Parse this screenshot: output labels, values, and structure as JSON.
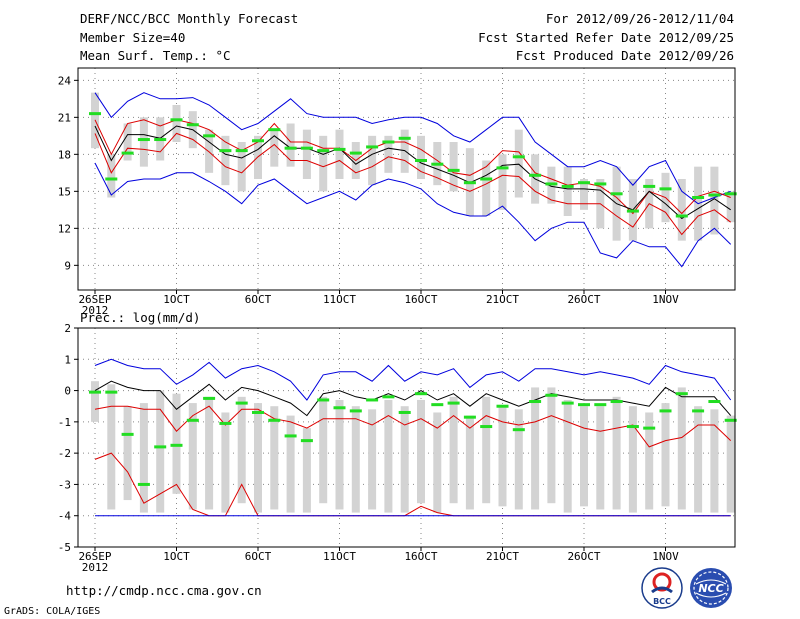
{
  "header": {
    "title": "DERF/NCC/BCC Monthly Forecast",
    "member": "Member Size=40",
    "variable": "Mean Surf. Temp.: °C",
    "range": "For 2012/09/26-2012/11/04",
    "started": "Fcst Started Refer Date 2012/09/25",
    "produced": "Fcst Produced Date 2012/09/26"
  },
  "footer": {
    "url": "http://cmdp.ncc.cma.gov.cn",
    "credit": "GrADS: COLA/IGES",
    "logo_bcc": "BCC",
    "logo_ncc": "NCC"
  },
  "colors": {
    "envelope": "#0000dd",
    "spread": "#dd0000",
    "mean": "#000000",
    "obs": "#22dd22",
    "box": "#d3d3d3"
  },
  "chart_data": [
    {
      "type": "line",
      "title": "Mean Surf. Temp.: °C",
      "ylim": [
        7,
        25
      ],
      "yticks": [
        9,
        12,
        15,
        18,
        21,
        24
      ],
      "xticks": [
        {
          "day": 1,
          "label": "26SEP",
          "sub": "2012"
        },
        {
          "day": 6,
          "label": "1OCT"
        },
        {
          "day": 11,
          "label": "6OCT"
        },
        {
          "day": 16,
          "label": "11OCT"
        },
        {
          "day": 21,
          "label": "16OCT"
        },
        {
          "day": 26,
          "label": "21OCT"
        },
        {
          "day": 31,
          "label": "26OCT"
        },
        {
          "day": 36,
          "label": "1NOV"
        }
      ],
      "days": [
        1,
        2,
        3,
        4,
        5,
        6,
        7,
        8,
        9,
        10,
        11,
        12,
        13,
        14,
        15,
        16,
        17,
        18,
        19,
        20,
        21,
        22,
        23,
        24,
        25,
        26,
        27,
        28,
        29,
        30,
        31,
        32,
        33,
        34,
        35,
        36,
        37,
        38,
        39,
        40
      ],
      "series": [
        {
          "name": "max",
          "values": [
            23,
            21,
            22.3,
            23,
            22.5,
            22.5,
            22.6,
            22,
            21,
            20,
            20.5,
            21.5,
            22.5,
            21.3,
            21,
            21,
            21,
            20.5,
            20.8,
            21,
            21,
            20.5,
            19.5,
            19,
            20,
            21,
            21,
            19,
            18,
            17,
            17,
            17.5,
            17,
            15.5,
            17,
            17.5,
            15,
            14,
            14.5,
            15
          ]
        },
        {
          "name": "p75",
          "values": [
            20.8,
            18,
            20.5,
            20.8,
            20.3,
            20.8,
            20.5,
            20,
            19,
            18.3,
            19,
            20.5,
            19,
            19,
            18.5,
            18.5,
            17.5,
            18.5,
            19,
            19,
            18.4,
            17.5,
            16.5,
            16.3,
            17,
            18.3,
            18.2,
            16.5,
            16,
            15.5,
            15.7,
            15.4,
            14.5,
            13.2,
            15,
            14.5,
            13.2,
            14.6,
            15,
            14.5
          ]
        },
        {
          "name": "mean",
          "values": [
            20.3,
            17.5,
            19.6,
            19.6,
            19.3,
            20.3,
            20,
            19,
            18,
            17.7,
            18.4,
            19.5,
            18.5,
            18.5,
            18,
            18.5,
            17.2,
            18,
            18.5,
            18.3,
            17.3,
            16.8,
            16.3,
            15.7,
            16.3,
            17.1,
            17.2,
            16,
            15.4,
            15.2,
            15.2,
            15.1,
            14,
            13.5,
            15,
            14,
            12.8,
            13.6,
            14.4,
            13.5
          ]
        },
        {
          "name": "p25",
          "values": [
            19.7,
            16.5,
            18.5,
            18.4,
            18.2,
            19.7,
            19.2,
            18.2,
            17,
            16.5,
            17.8,
            18.8,
            17.5,
            17.5,
            17,
            17.5,
            16.5,
            17,
            17.8,
            17.5,
            16.6,
            16.1,
            15.5,
            15,
            15.6,
            16.3,
            16.2,
            15,
            14.3,
            14,
            14,
            14,
            13,
            12.1,
            14,
            13.3,
            11.5,
            13,
            13.5,
            12.5
          ]
        },
        {
          "name": "min",
          "values": [
            17.3,
            14.7,
            15.8,
            16,
            16,
            16.5,
            16.5,
            15.8,
            15,
            14,
            15.5,
            16,
            15,
            14,
            14.5,
            15,
            14.3,
            15.5,
            16,
            15.7,
            15.2,
            14,
            13.3,
            13,
            13,
            13.8,
            12.5,
            11,
            12,
            12.5,
            12.5,
            10,
            9.6,
            11,
            10.5,
            10.5,
            8.9,
            11,
            12,
            10.7
          ]
        }
      ],
      "boxes": [
        [
          18.5,
          23
        ],
        [
          14.5,
          18
        ],
        [
          17.5,
          20.5
        ],
        [
          17,
          21
        ],
        [
          17.5,
          21
        ],
        [
          19,
          22
        ],
        [
          18.5,
          21.5
        ],
        [
          16.5,
          20
        ],
        [
          15.5,
          19.5
        ],
        [
          15,
          19
        ],
        [
          16,
          19.5
        ],
        [
          17,
          20
        ],
        [
          17,
          20.5
        ],
        [
          16,
          20
        ],
        [
          15,
          19.5
        ],
        [
          16,
          20
        ],
        [
          16,
          19
        ],
        [
          15.5,
          19.5
        ],
        [
          16.5,
          19.5
        ],
        [
          16.5,
          20
        ],
        [
          16,
          19.5
        ],
        [
          15.5,
          19
        ],
        [
          15,
          19
        ],
        [
          13,
          18.5
        ],
        [
          13,
          17.5
        ],
        [
          13.5,
          18
        ],
        [
          14.5,
          20
        ],
        [
          14,
          18
        ],
        [
          14,
          17
        ],
        [
          13,
          17
        ],
        [
          13.5,
          16
        ],
        [
          12,
          16
        ],
        [
          11,
          17
        ],
        [
          11,
          16
        ],
        [
          12,
          16
        ],
        [
          12.5,
          16.5
        ],
        [
          11,
          16
        ],
        [
          11,
          17
        ],
        [
          11.5,
          17
        ],
        [
          12.5,
          15
        ]
      ],
      "obs": [
        21.3,
        16,
        18.1,
        19.2,
        19.2,
        20.8,
        20.4,
        19.5,
        18.3,
        18.3,
        19.1,
        20,
        18.5,
        18.5,
        18.3,
        18.4,
        18.1,
        18.6,
        19,
        19.3,
        17.5,
        17.2,
        16.7,
        15.7,
        16,
        16.9,
        17.8,
        16.3,
        15.6,
        15.4,
        15.7,
        15.6,
        14.8,
        13.4,
        15.4,
        15.2,
        13,
        14.5,
        14.7,
        14.8
      ]
    },
    {
      "type": "line",
      "title": "Prec.: log(mm/d)",
      "ylim": [
        -5,
        2
      ],
      "yticks": [
        -5,
        -4,
        -3,
        -2,
        -1,
        0,
        1,
        2
      ],
      "xticks": [
        {
          "day": 1,
          "label": "26SEP",
          "sub": "2012"
        },
        {
          "day": 6,
          "label": "1OCT"
        },
        {
          "day": 11,
          "label": "6OCT"
        },
        {
          "day": 16,
          "label": "11OCT"
        },
        {
          "day": 21,
          "label": "16OCT"
        },
        {
          "day": 26,
          "label": "21OCT"
        },
        {
          "day": 31,
          "label": "26OCT"
        },
        {
          "day": 36,
          "label": "1NOV"
        }
      ],
      "days": [
        1,
        2,
        3,
        4,
        5,
        6,
        7,
        8,
        9,
        10,
        11,
        12,
        13,
        14,
        15,
        16,
        17,
        18,
        19,
        20,
        21,
        22,
        23,
        24,
        25,
        26,
        27,
        28,
        29,
        30,
        31,
        32,
        33,
        34,
        35,
        36,
        37,
        38,
        39,
        40
      ],
      "series": [
        {
          "name": "max",
          "values": [
            0.8,
            1,
            0.8,
            0.7,
            0.7,
            0.2,
            0.5,
            0.9,
            0.4,
            0.7,
            0.8,
            0.6,
            0.3,
            -0.3,
            0.5,
            0.6,
            0.6,
            0.3,
            0.8,
            0.3,
            0.6,
            0.5,
            0.7,
            0.1,
            0.5,
            0.6,
            0.3,
            0.7,
            0.7,
            0.6,
            0.5,
            0.6,
            0.5,
            0.4,
            0.2,
            0.8,
            0.6,
            0.5,
            0.4,
            -0.3
          ]
        },
        {
          "name": "mean",
          "values": [
            0,
            0.3,
            0.1,
            0,
            0,
            -0.6,
            -0.2,
            0.2,
            -0.3,
            0.1,
            0,
            -0.2,
            -0.4,
            -0.8,
            -0.1,
            0,
            -0.2,
            -0.3,
            -0.1,
            -0.3,
            0,
            -0.3,
            -0.1,
            -0.5,
            -0.1,
            -0.3,
            -0.5,
            -0.3,
            -0.1,
            -0.2,
            -0.3,
            -0.3,
            -0.3,
            -0.4,
            -0.5,
            0.1,
            -0.2,
            -0.2,
            -0.2,
            -0.8
          ]
        },
        {
          "name": "p25",
          "values": [
            -2.2,
            -2,
            -2.6,
            -3.6,
            -3.3,
            -3,
            -3.8,
            -4,
            -4,
            -3,
            -4,
            -4,
            -4,
            -4,
            -4,
            -4,
            -4,
            -4,
            -4,
            -4,
            -3.7,
            -3.9,
            -4,
            -4,
            -4,
            -4,
            -4,
            -4,
            -4,
            -4,
            -4,
            -4,
            -4,
            -4,
            -4,
            -4,
            -4,
            -4,
            -4,
            -4
          ]
        },
        {
          "name": "p75",
          "values": [
            -0.6,
            -0.5,
            -0.5,
            -0.6,
            -0.6,
            -1.3,
            -0.8,
            -0.5,
            -1.1,
            -0.6,
            -0.6,
            -0.9,
            -1,
            -1.2,
            -0.9,
            -0.9,
            -0.9,
            -1.1,
            -0.8,
            -1.1,
            -0.9,
            -1.2,
            -0.8,
            -1.2,
            -0.8,
            -1,
            -1.1,
            -1,
            -0.8,
            -1,
            -1.2,
            -1.3,
            -1.2,
            -1.1,
            -1.8,
            -1.6,
            -1.5,
            -1.1,
            -1.1,
            -1.6
          ]
        },
        {
          "name": "min",
          "values": [
            -4,
            -4,
            -4,
            -4,
            -4,
            -4,
            -4,
            -4,
            -4,
            -4,
            -4,
            -4,
            -4,
            -4,
            -4,
            -4,
            -4,
            -4,
            -4,
            -4,
            -4,
            -4,
            -4,
            -4,
            -4,
            -4,
            -4,
            -4,
            -4,
            -4,
            -4,
            -4,
            -4,
            -4,
            -4,
            -4,
            -4,
            -4,
            -4,
            -4
          ]
        }
      ],
      "boxes": [
        [
          -1,
          0.3
        ],
        [
          -3.8,
          0.2
        ],
        [
          -3.5,
          -0.5
        ],
        [
          -3.9,
          -0.4
        ],
        [
          -3.9,
          0
        ],
        [
          -3.3,
          -0.1
        ],
        [
          -3.8,
          -0.4
        ],
        [
          -3.8,
          -0.2
        ],
        [
          -3.9,
          -0.7
        ],
        [
          -3.6,
          -0.2
        ],
        [
          -3.9,
          -0.4
        ],
        [
          -3.8,
          -0.5
        ],
        [
          -3.9,
          -0.8
        ],
        [
          -3.9,
          -1.2
        ],
        [
          -3.6,
          -0.2
        ],
        [
          -3.8,
          -0.3
        ],
        [
          -3.9,
          -0.5
        ],
        [
          -3.8,
          -0.6
        ],
        [
          -3.9,
          -0.3
        ],
        [
          -3.9,
          -0.5
        ],
        [
          -3.6,
          -0.3
        ],
        [
          -3.9,
          -0.7
        ],
        [
          -3.6,
          -0.2
        ],
        [
          -3.8,
          -0.8
        ],
        [
          -3.6,
          -0.2
        ],
        [
          -3.7,
          -0.5
        ],
        [
          -3.8,
          -0.6
        ],
        [
          -3.8,
          0.1
        ],
        [
          -3.6,
          0.1
        ],
        [
          -3.9,
          -0.3
        ],
        [
          -3.7,
          -0.5
        ],
        [
          -3.8,
          -0.5
        ],
        [
          -3.8,
          -0.2
        ],
        [
          -3.9,
          -0.5
        ],
        [
          -3.8,
          -0.7
        ],
        [
          -3.7,
          -0.4
        ],
        [
          -3.8,
          0.1
        ],
        [
          -3.9,
          -0.5
        ],
        [
          -3.9,
          -0.6
        ],
        [
          -3.9,
          -0.8
        ]
      ],
      "obs": [
        -0.05,
        -0.05,
        -1.4,
        -3,
        -1.8,
        -1.75,
        -0.95,
        -0.25,
        -1.05,
        -0.4,
        -0.7,
        -0.95,
        -1.45,
        -1.6,
        -0.3,
        -0.55,
        -0.65,
        -0.3,
        -0.2,
        -0.7,
        -0.1,
        -0.45,
        -0.4,
        -0.85,
        -1.15,
        -0.5,
        -1.25,
        -0.35,
        -0.15,
        -0.4,
        -0.45,
        -0.45,
        -0.35,
        -1.15,
        -1.2,
        -0.65,
        -0.1,
        -0.65,
        -0.35,
        -0.95
      ]
    }
  ]
}
